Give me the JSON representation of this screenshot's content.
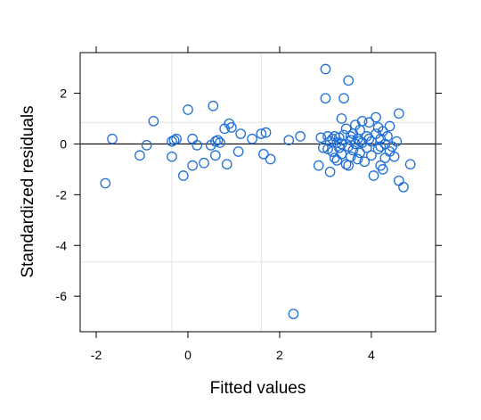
{
  "chart_data": {
    "type": "scatter",
    "title": "",
    "xlabel": "Fitted values",
    "ylabel": "Standardized residuals",
    "xlim": [
      -2.35,
      5.4
    ],
    "ylim": [
      -7.4,
      3.6
    ],
    "xticks": [
      -2,
      0,
      2,
      4
    ],
    "yticks": [
      -6,
      -4,
      -2,
      0,
      2
    ],
    "grid_x": [
      -0.35,
      1.6
    ],
    "grid_y": [
      -4.65,
      0.85
    ],
    "reference_line_y": 0,
    "point_color": "#1f6fd6",
    "points": [
      [
        -1.8,
        -1.55
      ],
      [
        -1.65,
        0.2
      ],
      [
        -1.05,
        -0.45
      ],
      [
        -0.9,
        -0.05
      ],
      [
        -0.75,
        0.9
      ],
      [
        -0.35,
        -0.5
      ],
      [
        -0.35,
        0.1
      ],
      [
        -0.3,
        0.15
      ],
      [
        -0.25,
        0.2
      ],
      [
        -0.1,
        -1.25
      ],
      [
        0.0,
        1.35
      ],
      [
        0.1,
        0.2
      ],
      [
        0.1,
        -0.85
      ],
      [
        0.2,
        -0.05
      ],
      [
        0.35,
        -0.75
      ],
      [
        0.5,
        -0.05
      ],
      [
        0.55,
        1.5
      ],
      [
        0.6,
        0.1
      ],
      [
        0.6,
        -0.45
      ],
      [
        0.65,
        0.15
      ],
      [
        0.7,
        0.05
      ],
      [
        0.8,
        0.6
      ],
      [
        0.85,
        -0.8
      ],
      [
        0.9,
        0.8
      ],
      [
        0.95,
        0.65
      ],
      [
        1.1,
        -0.3
      ],
      [
        1.15,
        0.4
      ],
      [
        1.4,
        0.2
      ],
      [
        1.6,
        0.4
      ],
      [
        1.65,
        -0.4
      ],
      [
        1.7,
        0.45
      ],
      [
        1.8,
        -0.6
      ],
      [
        2.2,
        0.15
      ],
      [
        2.3,
        -6.7
      ],
      [
        2.45,
        0.3
      ],
      [
        2.85,
        -0.85
      ],
      [
        2.9,
        0.25
      ],
      [
        2.95,
        -0.15
      ],
      [
        3.0,
        1.8
      ],
      [
        3.0,
        2.95
      ],
      [
        3.05,
        -0.2
      ],
      [
        3.1,
        0.1
      ],
      [
        3.1,
        -1.1
      ],
      [
        3.15,
        -0.3
      ],
      [
        3.2,
        0.3
      ],
      [
        3.2,
        -0.55
      ],
      [
        3.25,
        -0.65
      ],
      [
        3.25,
        0.05
      ],
      [
        3.3,
        -0.15
      ],
      [
        3.3,
        0.25
      ],
      [
        3.35,
        1.0
      ],
      [
        3.35,
        -0.4
      ],
      [
        3.4,
        1.8
      ],
      [
        3.4,
        0.35
      ],
      [
        3.45,
        -0.8
      ],
      [
        3.45,
        0.6
      ],
      [
        3.5,
        2.5
      ],
      [
        3.5,
        -0.1
      ],
      [
        3.5,
        -0.85
      ],
      [
        3.55,
        0.15
      ],
      [
        3.55,
        -0.5
      ],
      [
        3.6,
        0.4
      ],
      [
        3.6,
        -0.25
      ],
      [
        3.65,
        0.0
      ],
      [
        3.65,
        0.75
      ],
      [
        3.7,
        -0.6
      ],
      [
        3.7,
        0.2
      ],
      [
        3.75,
        0.55
      ],
      [
        3.75,
        -0.35
      ],
      [
        3.8,
        0.9
      ],
      [
        3.8,
        0.05
      ],
      [
        3.85,
        -0.7
      ],
      [
        3.9,
        0.3
      ],
      [
        3.9,
        -0.15
      ],
      [
        3.95,
        0.85
      ],
      [
        4.0,
        -0.45
      ],
      [
        4.0,
        0.1
      ],
      [
        4.05,
        -1.25
      ],
      [
        4.1,
        1.05
      ],
      [
        4.1,
        0.4
      ],
      [
        4.15,
        -0.2
      ],
      [
        4.15,
        0.65
      ],
      [
        4.2,
        -0.85
      ],
      [
        4.2,
        0.2
      ],
      [
        4.25,
        0.5
      ],
      [
        4.25,
        -1.0
      ],
      [
        4.3,
        0.0
      ],
      [
        4.3,
        -0.55
      ],
      [
        4.35,
        0.3
      ],
      [
        4.4,
        0.7
      ],
      [
        4.4,
        -0.3
      ],
      [
        4.5,
        -0.5
      ],
      [
        4.55,
        0.1
      ],
      [
        4.6,
        1.2
      ],
      [
        4.6,
        -1.45
      ],
      [
        4.7,
        -1.7
      ],
      [
        4.85,
        -0.8
      ],
      [
        3.15,
        0.2
      ],
      [
        3.35,
        0.0
      ],
      [
        3.55,
        0.3
      ],
      [
        3.75,
        0.1
      ],
      [
        3.95,
        0.2
      ],
      [
        4.2,
        -0.1
      ],
      [
        4.45,
        -0.1
      ],
      [
        3.05,
        0.3
      ]
    ]
  }
}
